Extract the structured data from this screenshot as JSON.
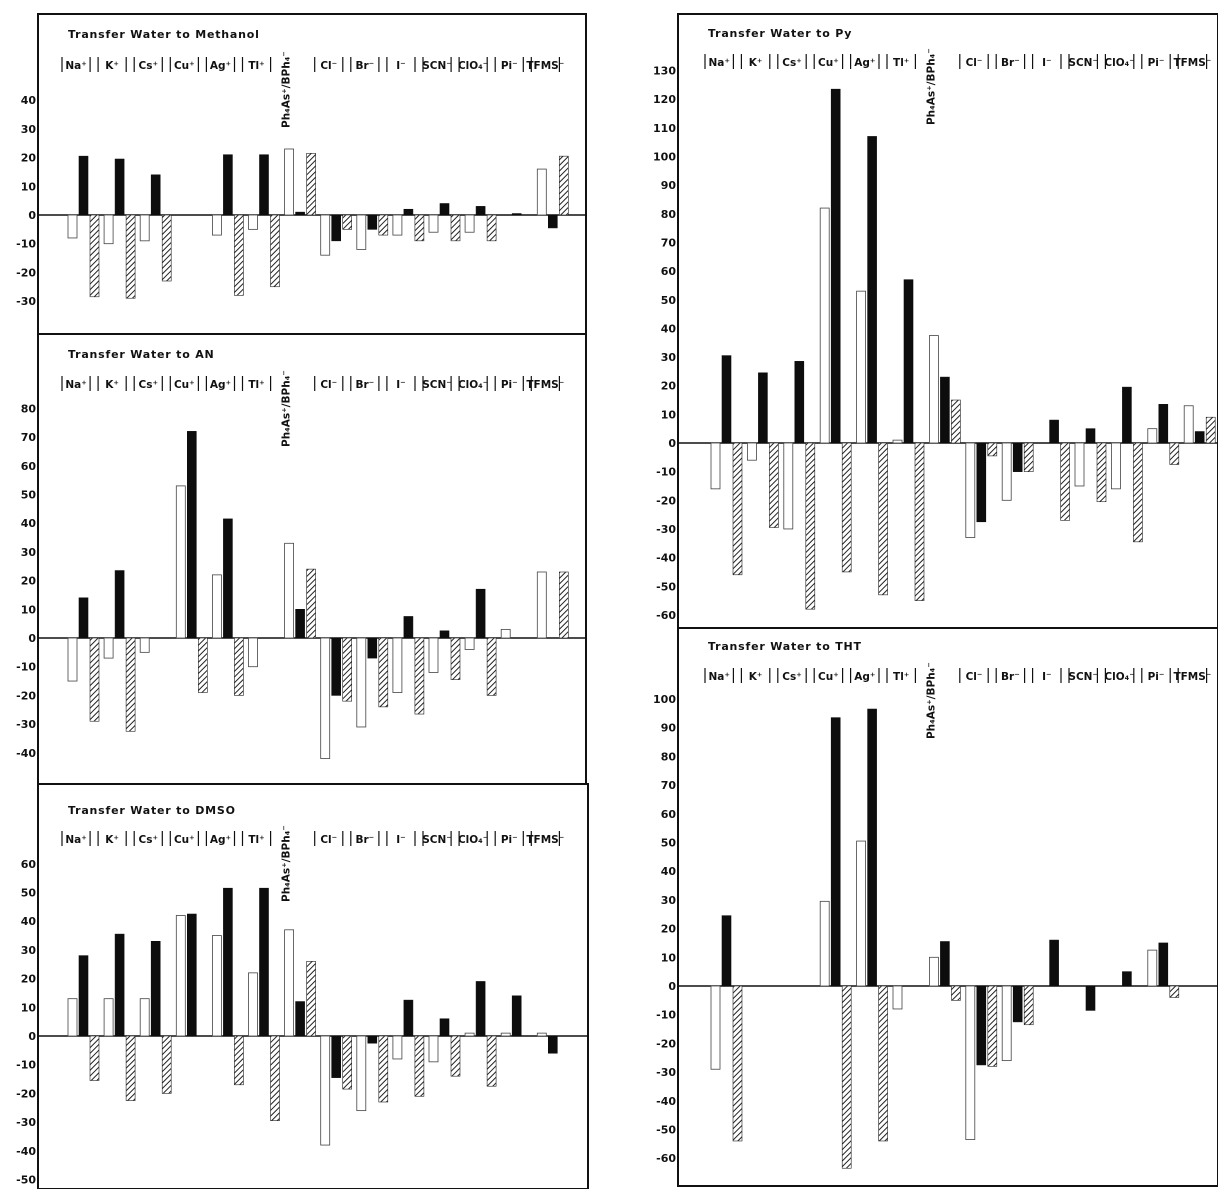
{
  "chart_data": [
    {
      "type": "bar",
      "title": "Transfer Water to Methanol",
      "categories": [
        "Na⁺",
        "K⁺",
        "Cs⁺",
        "Cu⁺",
        "Ag⁺",
        "Tl⁺",
        "Ph₄As⁺/BPh₄⁻",
        "Cl⁻",
        "Br⁻",
        "I⁻",
        "SCN⁻",
        "ClO₄⁻",
        "Pi⁻",
        "TFMS⁻"
      ],
      "ylim": [
        -35,
        45
      ],
      "yticks": [
        40,
        30,
        20,
        10,
        0,
        -10,
        -20,
        -30
      ],
      "series": [
        {
          "pattern": "open",
          "values": [
            -8,
            -10,
            -9,
            null,
            -7,
            -5,
            23,
            -14,
            -12,
            -7,
            -6,
            -6,
            null,
            16
          ]
        },
        {
          "pattern": "solid",
          "values": [
            20.5,
            19.5,
            14,
            null,
            21,
            21,
            1,
            -9,
            -5,
            2,
            4,
            3,
            0.5,
            -4.5
          ]
        },
        {
          "pattern": "hatched",
          "values": [
            -28.5,
            -29,
            -23,
            null,
            -28,
            -25,
            21.5,
            -5,
            -7,
            -9,
            -9,
            -9,
            null,
            20.5
          ]
        }
      ]
    },
    {
      "type": "bar",
      "title": "Transfer Water to AN",
      "categories": [
        "Na⁺",
        "K⁺",
        "Cs⁺",
        "Cu⁺",
        "Ag⁺",
        "Tl⁺",
        "Ph₄As⁺/BPh₄⁻",
        "Cl⁻",
        "Br⁻",
        "I⁻",
        "SCN⁻",
        "ClO₄⁻",
        "Pi⁻",
        "TFMS⁻"
      ],
      "ylim": [
        -48,
        88
      ],
      "yticks": [
        80,
        70,
        60,
        50,
        40,
        30,
        20,
        10,
        0,
        -10,
        -20,
        -30,
        -40
      ],
      "series": [
        {
          "pattern": "open",
          "values": [
            -15,
            -7,
            -5,
            53,
            22,
            -10,
            33,
            -42,
            -31,
            -19,
            -12,
            -4,
            3,
            23
          ]
        },
        {
          "pattern": "solid",
          "values": [
            14,
            23.5,
            null,
            72,
            41.5,
            null,
            10,
            -20,
            -7,
            7.5,
            2.5,
            17,
            null,
            null
          ]
        },
        {
          "pattern": "hatched",
          "values": [
            -29,
            -32.5,
            null,
            -19,
            -20,
            null,
            24,
            -22,
            -24,
            -26.5,
            -14.5,
            -20,
            null,
            23
          ]
        }
      ]
    },
    {
      "type": "bar",
      "title": "Transfer Water to DMSO",
      "categories": [
        "Na⁺",
        "K⁺",
        "Cs⁺",
        "Cu⁺",
        "Ag⁺",
        "Tl⁺",
        "Ph₄As⁺/BPh₄⁻",
        "Cl⁻",
        "Br⁻",
        "I⁻",
        "SCN⁻",
        "ClO₄⁻",
        "Pi⁻",
        "TFMS⁻"
      ],
      "ylim": [
        -52,
        67
      ],
      "yticks": [
        60,
        50,
        40,
        30,
        20,
        10,
        0,
        -10,
        -20,
        -30,
        -40,
        -50
      ],
      "series": [
        {
          "pattern": "open",
          "values": [
            13,
            13,
            13,
            42,
            35,
            22,
            37,
            -38,
            -26,
            -8,
            -9,
            1,
            1,
            1
          ]
        },
        {
          "pattern": "solid",
          "values": [
            28,
            35.5,
            33,
            42.5,
            51.5,
            51.5,
            12,
            -14.5,
            -2.5,
            12.5,
            6,
            19,
            14,
            -6
          ]
        },
        {
          "pattern": "hatched",
          "values": [
            -15.5,
            -22.5,
            -20,
            null,
            -17,
            -29.5,
            26,
            -18.5,
            -23,
            -21,
            -14,
            -17.5,
            null,
            null
          ]
        }
      ]
    },
    {
      "type": "bar",
      "title": "Transfer Water to Py",
      "categories": [
        "Na⁺",
        "K⁺",
        "Cs⁺",
        "Cu⁺",
        "Ag⁺",
        "Tl⁺",
        "Ph₄As⁺/BPh₄⁻",
        "Cl⁻",
        "Br⁻",
        "I⁻",
        "SCN⁻",
        "ClO₄⁻",
        "Pi⁻",
        "TFMS⁻"
      ],
      "ylim": [
        -62,
        133
      ],
      "yticks": [
        130,
        120,
        110,
        100,
        90,
        80,
        70,
        60,
        50,
        40,
        30,
        20,
        10,
        0,
        -10,
        -20,
        -30,
        -40,
        -50,
        -60
      ],
      "series": [
        {
          "pattern": "open",
          "values": [
            -16,
            -6,
            -30,
            82,
            53,
            1,
            37.5,
            -33,
            -20,
            null,
            -15,
            -16,
            5,
            13
          ]
        },
        {
          "pattern": "solid",
          "values": [
            30.5,
            24.5,
            28.5,
            123.5,
            107,
            57,
            23,
            -27.5,
            -10,
            8,
            5,
            19.5,
            13.5,
            4
          ]
        },
        {
          "pattern": "hatched",
          "values": [
            -46,
            -29.5,
            -58,
            -45,
            -53,
            -55,
            15,
            -4.5,
            -10,
            -27,
            -20.5,
            -34.5,
            -7.5,
            9
          ]
        }
      ]
    },
    {
      "type": "bar",
      "title": "Transfer Water to THT",
      "categories": [
        "Na⁺",
        "K⁺",
        "Cs⁺",
        "Cu⁺",
        "Ag⁺",
        "Tl⁺",
        "Ph₄As⁺/BPh₄⁻",
        "Cl⁻",
        "Br⁻",
        "I⁻",
        "SCN⁻",
        "ClO₄⁻",
        "Pi⁻",
        "TFMS⁻"
      ],
      "ylim": [
        -65,
        103
      ],
      "yticks": [
        100,
        90,
        80,
        70,
        60,
        50,
        40,
        30,
        20,
        10,
        0,
        -10,
        -20,
        -30,
        -40,
        -50,
        -60
      ],
      "series": [
        {
          "pattern": "open",
          "values": [
            -29,
            null,
            null,
            29.5,
            50.5,
            -8,
            10,
            -53.5,
            -26,
            null,
            null,
            null,
            12.5,
            null
          ]
        },
        {
          "pattern": "solid",
          "values": [
            24.5,
            null,
            null,
            93.5,
            96.5,
            null,
            15.5,
            -27.5,
            -12.5,
            16,
            -8.5,
            5,
            15,
            null
          ]
        },
        {
          "pattern": "hatched",
          "values": [
            -54,
            null,
            null,
            -63.5,
            -54,
            null,
            -5,
            -28,
            -13.5,
            null,
            null,
            null,
            -4,
            null
          ]
        }
      ]
    }
  ]
}
